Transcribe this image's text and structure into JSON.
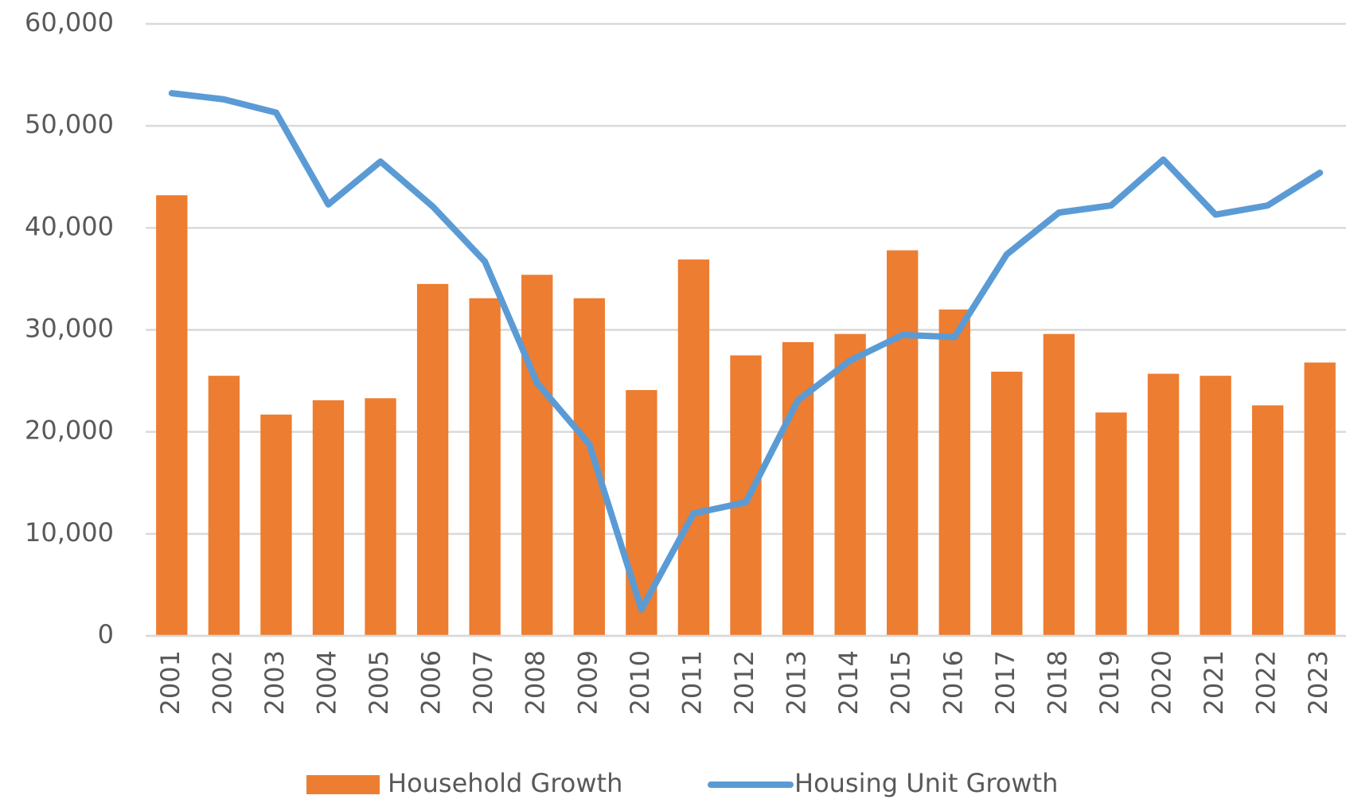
{
  "chart_data": {
    "type": "bar-line",
    "categories": [
      "2001",
      "2002",
      "2003",
      "2004",
      "2005",
      "2006",
      "2007",
      "2008",
      "2009",
      "2010",
      "2011",
      "2012",
      "2013",
      "2014",
      "2015",
      "2016",
      "2017",
      "2018",
      "2019",
      "2020",
      "2021",
      "2022",
      "2023"
    ],
    "series": [
      {
        "name": "Household Growth",
        "type": "bar",
        "color": "#ed7d31",
        "values": [
          43200,
          25500,
          21700,
          23100,
          23300,
          34500,
          33100,
          35400,
          33100,
          24100,
          36900,
          27500,
          28800,
          29600,
          37800,
          32000,
          25900,
          29600,
          21900,
          25700,
          25500,
          22600,
          26800
        ]
      },
      {
        "name": "Housing Unit Growth",
        "type": "line",
        "color": "#5b9bd5",
        "values": [
          53200,
          52600,
          51300,
          42300,
          46500,
          42100,
          36700,
          24800,
          18800,
          2600,
          12000,
          13100,
          23100,
          27000,
          29500,
          29300,
          37400,
          41500,
          42200,
          46700,
          41300,
          42200,
          45400
        ]
      }
    ],
    "ylim": [
      0,
      60000
    ],
    "yticks": [
      0,
      {
        "value": 10000,
        "label": "10,000"
      },
      {
        "value": 20000,
        "label": "20,000"
      },
      {
        "value": 30000,
        "label": "30,000"
      },
      {
        "value": 40000,
        "label": "40,000"
      },
      {
        "value": 50000,
        "label": "50,000"
      },
      {
        "value": 60000,
        "label": "60,000"
      }
    ],
    "grid": true,
    "legend": "bottom"
  }
}
